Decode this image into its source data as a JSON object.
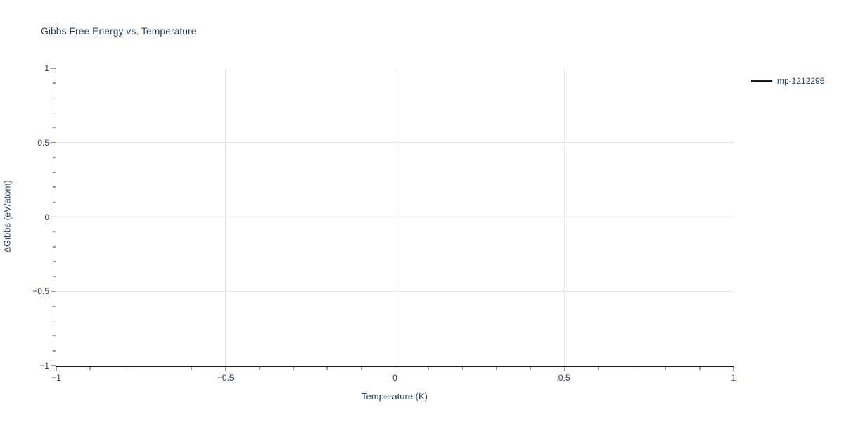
{
  "colors": {
    "title_text": "#2a3f5f",
    "tick_text": "#2a3f5f",
    "axis_line": "#1a1a1a",
    "grid_line": "#e6e6e6",
    "tick_mark": "#9a9a9a",
    "background": "#ffffff",
    "series_line": "#1a1a1a"
  },
  "chart_data": {
    "type": "line",
    "title": "Gibbs Free Energy vs. Temperature",
    "xlabel": "Temperature (K)",
    "ylabel": "ΔGibbs (eV/atom)",
    "xlim": [
      -1,
      1
    ],
    "ylim": [
      -1,
      1
    ],
    "x_ticks": [
      -1,
      -0.5,
      0,
      0.5,
      1
    ],
    "x_tick_labels": [
      "−1",
      "−0.5",
      "0",
      "0.5",
      "1"
    ],
    "y_ticks": [
      -1,
      -0.5,
      0,
      0.5,
      1
    ],
    "y_tick_labels": [
      "−1",
      "−0.5",
      "0",
      "0.5",
      "1"
    ],
    "grid_x": [
      -0.5,
      0,
      0.5
    ],
    "grid_y": [
      -0.5,
      0,
      0.5
    ],
    "minor_tick_step": 0.1,
    "grid": true,
    "legend_position": "right-top",
    "series": [
      {
        "name": "mp-1212295",
        "color": "#1a1a1a",
        "x": [],
        "y": []
      }
    ]
  }
}
